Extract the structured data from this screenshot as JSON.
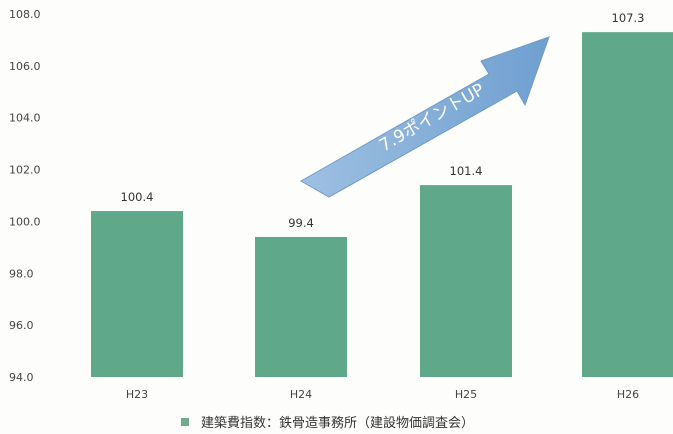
{
  "chart_data": {
    "type": "bar",
    "categories": [
      "H23",
      "H24",
      "H25",
      "H26"
    ],
    "values": [
      100.4,
      99.4,
      101.4,
      107.3
    ],
    "data_labels": [
      "100.4",
      "99.4",
      "101.4",
      "107.3"
    ],
    "series": [
      {
        "name": "建築費指数：鉄骨造事務所（建設物価調査会）",
        "values": [
          100.4,
          99.4,
          101.4,
          107.3
        ]
      }
    ],
    "y_ticks": [
      "94.0",
      "96.0",
      "98.0",
      "100.0",
      "102.0",
      "104.0",
      "106.0",
      "108.0"
    ],
    "ylim": [
      94.0,
      108.0
    ],
    "grid": false,
    "legend": {
      "position": "bottom",
      "label": "建築費指数：鉄骨造事務所（建設物価調査会）"
    },
    "annotation": {
      "text": "7.9ポイントUP",
      "kind": "arrow"
    },
    "colors": {
      "bar": "#5fa98a",
      "legend_swatch": "#6cab8c",
      "arrow": "#82acd8"
    }
  }
}
